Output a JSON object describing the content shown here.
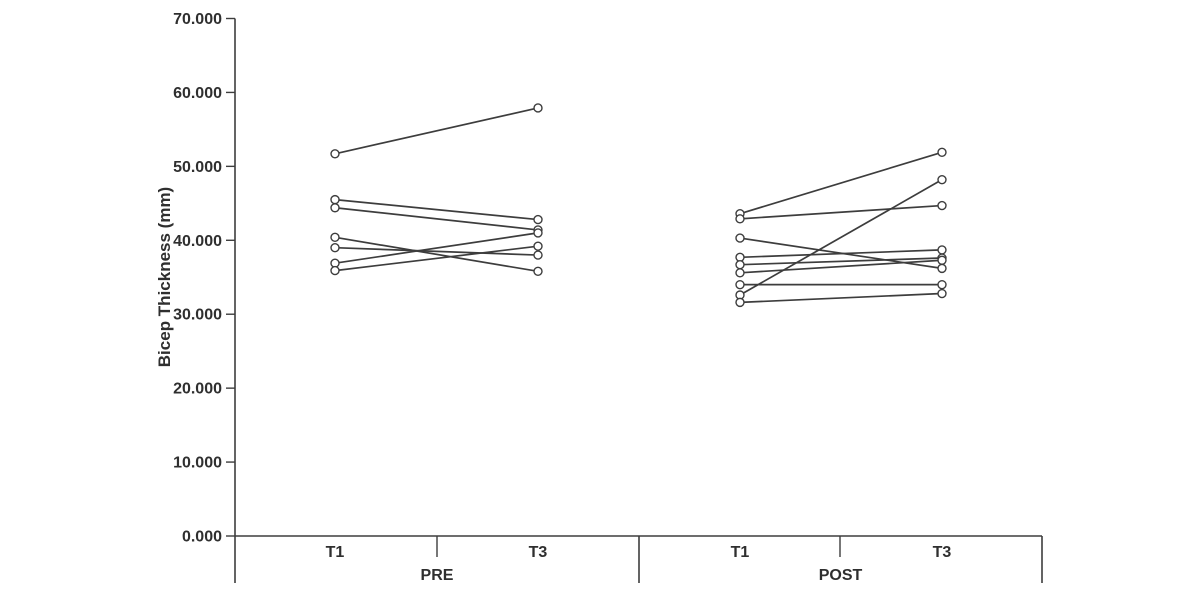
{
  "figure": {
    "background": "#ffffff",
    "ink_color": "#3d3d3d",
    "text_color": "#2f2f2f"
  },
  "chart_data": {
    "type": "line",
    "subtype": "paired-individual-subject-lines",
    "title": "",
    "xlabel": "",
    "ylabel": "Bicep Thickness (mm)",
    "ylim": [
      0,
      70
    ],
    "grid": "off",
    "legend": "none",
    "marker": "open-circle",
    "y_ticks": [
      {
        "value": 0,
        "label": "0.000"
      },
      {
        "value": 10,
        "label": "10.000"
      },
      {
        "value": 20,
        "label": "20.000"
      },
      {
        "value": 30,
        "label": "30.000"
      },
      {
        "value": 40,
        "label": "40.000"
      },
      {
        "value": 50,
        "label": "50.000"
      },
      {
        "value": 60,
        "label": "60.000"
      },
      {
        "value": 70,
        "label": "70.000"
      }
    ],
    "groups": [
      {
        "label": "PRE",
        "timepoints": [
          "T1",
          "T3"
        ],
        "subjects": [
          [
            51.7,
            57.9
          ],
          [
            45.5,
            42.8
          ],
          [
            44.4,
            41.4
          ],
          [
            40.4,
            35.8
          ],
          [
            39.0,
            38.0
          ],
          [
            36.9,
            41.0
          ],
          [
            35.9,
            39.2
          ]
        ]
      },
      {
        "label": "POST",
        "timepoints": [
          "T1",
          "T3"
        ],
        "subjects": [
          [
            43.6,
            51.9
          ],
          [
            42.9,
            44.7
          ],
          [
            40.3,
            36.2
          ],
          [
            37.7,
            38.7
          ],
          [
            36.7,
            37.6
          ],
          [
            35.6,
            37.3
          ],
          [
            34.0,
            34.0
          ],
          [
            32.6,
            48.2
          ],
          [
            31.6,
            32.8
          ]
        ]
      }
    ]
  }
}
